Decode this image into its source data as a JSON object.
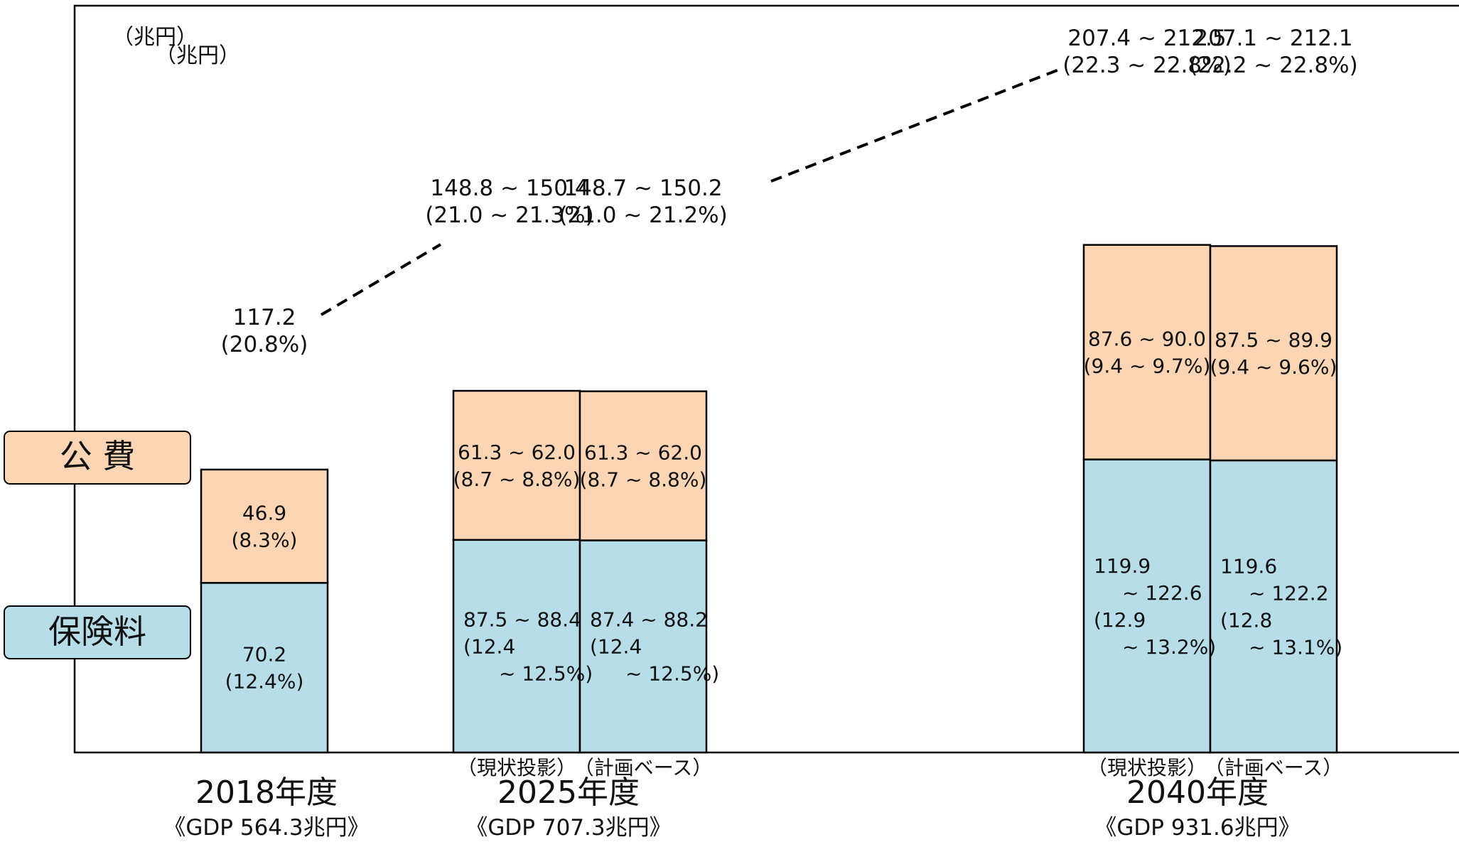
{
  "colors": {
    "premium": "#b7dde8",
    "public_cost": "#fcd5b5",
    "outline": "#000000",
    "text": "#111111"
  },
  "legend": {
    "public_cost": "公 費",
    "premium": "保険料"
  },
  "unit_labels": [
    "（兆円）",
    "（兆円）"
  ],
  "chart_data": {
    "type": "bar",
    "stacked": true,
    "unit": "兆円",
    "ylim": [
      0,
      220
    ],
    "series": [
      {
        "name": "保険料",
        "color": "#b7dde8"
      },
      {
        "name": "公 費",
        "color": "#fcd5b5"
      }
    ],
    "groups": [
      {
        "year_label": "2018年度",
        "gdp_label": "《GDP 564.3兆円》",
        "bars": [
          {
            "sublabel": "",
            "premium": 70.2,
            "public": 46.9,
            "total": 117.2,
            "premium_text": [
              "70.2",
              "(12.4%)"
            ],
            "public_text": [
              "46.9",
              "(8.3%)"
            ],
            "total_text": [
              "117.2",
              "(20.8%)"
            ]
          }
        ]
      },
      {
        "year_label": "2025年度",
        "gdp_label": "《GDP 707.3兆円》",
        "bars": [
          {
            "sublabel": "（現状投影）",
            "premium": 88.0,
            "public": 61.7,
            "total": 149.6,
            "premium_text": [
              "87.5 ~ 88.4",
              "(12.4",
              "~ 12.5%)"
            ],
            "public_text": [
              "61.3 ~ 62.0",
              "(8.7 ~ 8.8%)"
            ],
            "total_text": [
              "148.8 ~ 150.4",
              "(21.0 ~ 21.3%)"
            ]
          },
          {
            "sublabel": "（計画ベース）",
            "premium": 87.8,
            "public": 61.7,
            "total": 149.5,
            "premium_text": [
              "87.4 ~ 88.2",
              "(12.4",
              "~ 12.5%)"
            ],
            "public_text": [
              "61.3 ~ 62.0",
              "(8.7 ~ 8.8%)"
            ],
            "total_text": [
              "148.7 ~ 150.2",
              "(21.0 ~ 21.2%)"
            ]
          }
        ]
      },
      {
        "year_label": "2040年度",
        "gdp_label": "《GDP 931.6兆円》",
        "bars": [
          {
            "sublabel": "（現状投影）",
            "premium": 121.3,
            "public": 88.8,
            "total": 210.0,
            "premium_text": [
              "119.9",
              "~ 122.6",
              "(12.9",
              "~ 13.2%)"
            ],
            "public_text": [
              "87.6 ~ 90.0",
              "(9.4 ~ 9.7%)"
            ],
            "total_text": [
              "207.4 ~ 212.5",
              "(22.3 ~ 22.8%)"
            ]
          },
          {
            "sublabel": "（計画ベース）",
            "premium": 120.9,
            "public": 88.7,
            "total": 209.6,
            "premium_text": [
              "119.6",
              "~ 122.2",
              "(12.8",
              "~ 13.1%)"
            ],
            "public_text": [
              "87.5 ~ 89.9",
              "(9.4 ~ 9.6%)"
            ],
            "total_text": [
              "207.1 ~ 212.1",
              "(22.2 ~ 22.8%)"
            ]
          }
        ]
      }
    ]
  }
}
